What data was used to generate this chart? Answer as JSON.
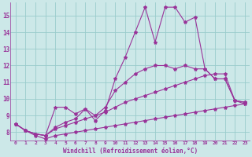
{
  "x": [
    0,
    1,
    2,
    3,
    4,
    5,
    6,
    7,
    8,
    9,
    10,
    11,
    12,
    13,
    14,
    15,
    16,
    17,
    18,
    19,
    20,
    21,
    22,
    23
  ],
  "line1": [
    8.5,
    8.1,
    7.9,
    7.8,
    9.5,
    9.5,
    9.1,
    9.4,
    8.7,
    9.3,
    11.2,
    12.5,
    14.0,
    15.5,
    13.4,
    15.5,
    15.5,
    14.6,
    14.9,
    11.8,
    11.2,
    11.2,
    9.9,
    9.7
  ],
  "line2": [
    8.5,
    8.1,
    7.9,
    7.8,
    8.3,
    8.6,
    8.8,
    9.4,
    9.0,
    9.5,
    10.5,
    11.0,
    11.5,
    11.8,
    12.0,
    12.0,
    11.8,
    12.0,
    11.8,
    11.8,
    11.2,
    11.2,
    9.9,
    9.8
  ],
  "line3": [
    8.5,
    8.1,
    7.9,
    7.8,
    8.2,
    8.4,
    8.6,
    8.8,
    9.0,
    9.2,
    9.5,
    9.8,
    10.0,
    10.2,
    10.4,
    10.6,
    10.8,
    11.0,
    11.2,
    11.4,
    11.5,
    11.5,
    9.9,
    9.8
  ],
  "line4": [
    8.5,
    8.1,
    7.8,
    7.6,
    7.8,
    7.9,
    8.0,
    8.1,
    8.2,
    8.3,
    8.4,
    8.5,
    8.6,
    8.7,
    8.8,
    8.9,
    9.0,
    9.1,
    9.2,
    9.3,
    9.4,
    9.5,
    9.6,
    9.7
  ],
  "color": "#993399",
  "bg_color": "#cce8e8",
  "grid_color": "#99cccc",
  "ylim": [
    7.5,
    15.8
  ],
  "yticks": [
    8,
    9,
    10,
    11,
    12,
    13,
    14,
    15
  ],
  "xticks": [
    0,
    1,
    2,
    3,
    4,
    5,
    6,
    7,
    8,
    9,
    10,
    11,
    12,
    13,
    14,
    15,
    16,
    17,
    18,
    19,
    20,
    21,
    22,
    23
  ],
  "xlabel": "Windchill (Refroidissement éolien,°C)",
  "marker": "*",
  "markersize": 3,
  "linewidth": 0.8
}
